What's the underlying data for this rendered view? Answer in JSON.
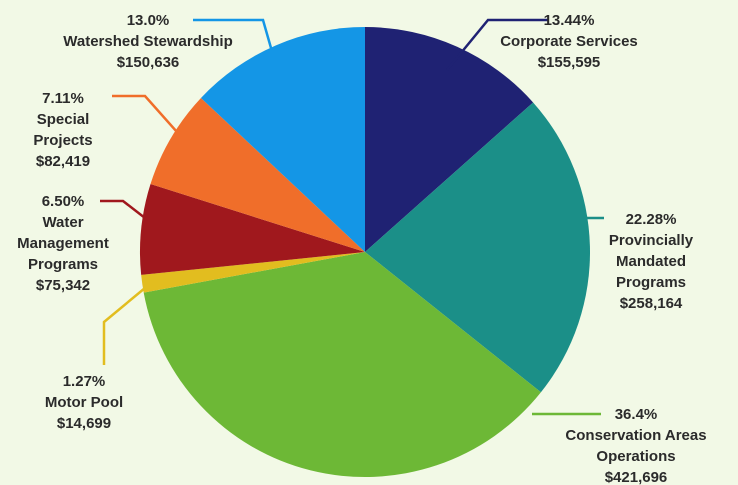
{
  "chart_data": {
    "type": "pie",
    "title": "",
    "slices": [
      {
        "pct": "13.44%",
        "name_lines": [
          "Corporate Services"
        ],
        "amount": "$155,595",
        "value": 155595,
        "color": "#1f2273"
      },
      {
        "pct": "22.28%",
        "name_lines": [
          "Provincially",
          "Mandated",
          "Programs"
        ],
        "amount": "$258,164",
        "value": 258164,
        "color": "#1b8f88"
      },
      {
        "pct": "36.4%",
        "name_lines": [
          "Conservation Areas",
          "Operations"
        ],
        "amount": "$421,696",
        "value": 421696,
        "color": "#6db836"
      },
      {
        "pct": "1.27%",
        "name_lines": [
          "Motor Pool"
        ],
        "amount": "$14,699",
        "value": 14699,
        "color": "#e2bd1f"
      },
      {
        "pct": "6.50%",
        "name_lines": [
          "Water",
          "Management",
          "Programs"
        ],
        "amount": "$75,342",
        "value": 75342,
        "color": "#a0181d"
      },
      {
        "pct": "7.11%",
        "name_lines": [
          "Special",
          "Projects"
        ],
        "amount": "$82,419",
        "value": 82419,
        "color": "#f06e2a"
      },
      {
        "pct": "13.0%",
        "name_lines": [
          "Watershed Stewardship"
        ],
        "amount": "$150,636",
        "value": 150636,
        "color": "#1496e6"
      }
    ]
  }
}
